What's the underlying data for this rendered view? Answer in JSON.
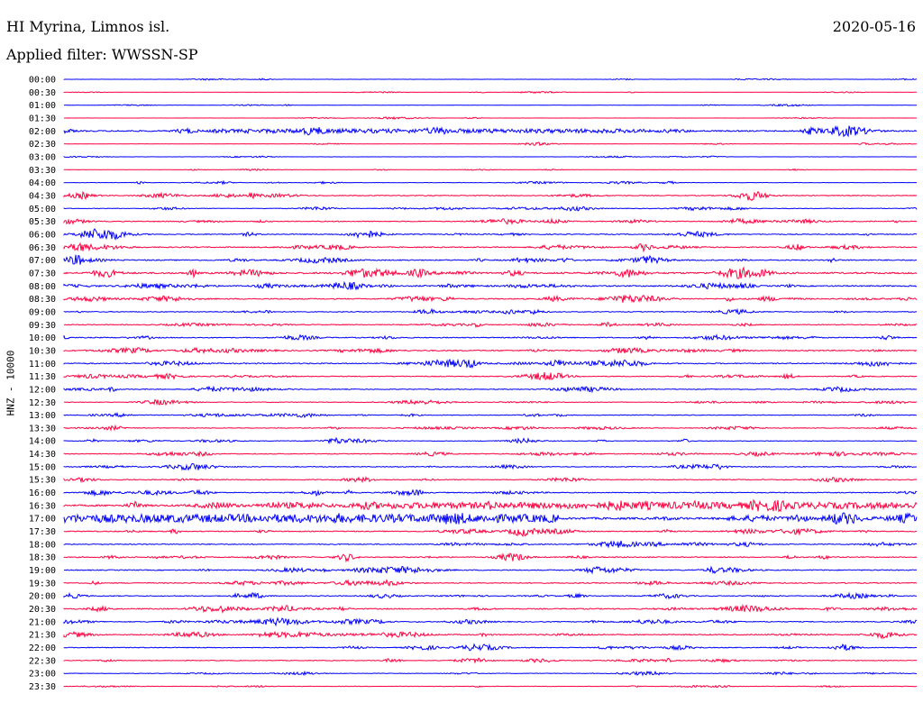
{
  "header": {
    "station": "HI Myrina, Limnos isl.",
    "date": "2020-05-16",
    "filter": "Applied filter: WWSSN-SP"
  },
  "channel_label": "HNZ - 10000",
  "colors": {
    "even_trace": "#0000ff",
    "odd_trace": "#ff0040",
    "background": "#ffffff"
  },
  "chart_data": {
    "type": "line",
    "title": "HI Myrina, Limnos isl.",
    "subtitle": "Applied filter: WWSSN-SP",
    "ylabel": "HNZ - 10000",
    "xlabel": "",
    "legend": "none",
    "grid": false,
    "trace_period_minutes": 30,
    "row_labels": [
      "00:00",
      "00:30",
      "01:00",
      "01:30",
      "02:00",
      "02:30",
      "03:00",
      "03:30",
      "04:00",
      "04:30",
      "05:00",
      "05:30",
      "06:00",
      "06:30",
      "07:00",
      "07:30",
      "08:00",
      "08:30",
      "09:00",
      "09:30",
      "10:00",
      "10:30",
      "11:00",
      "11:30",
      "12:00",
      "12:30",
      "13:00",
      "13:30",
      "14:00",
      "14:30",
      "15:00",
      "15:30",
      "16:00",
      "16:30",
      "17:00",
      "17:30",
      "18:00",
      "18:30",
      "19:00",
      "19:30",
      "20:00",
      "20:30",
      "21:00",
      "21:30",
      "22:00",
      "22:30",
      "23:00",
      "23:30"
    ],
    "relative_activity": [
      0.3,
      0.3,
      0.3,
      0.2,
      2.0,
      0.3,
      0.3,
      0.4,
      0.6,
      1.2,
      1.0,
      1.3,
      1.4,
      1.5,
      1.6,
      2.4,
      1.8,
      1.6,
      1.2,
      1.2,
      1.4,
      1.6,
      1.6,
      1.3,
      1.2,
      1.0,
      1.0,
      1.0,
      1.0,
      1.2,
      1.2,
      1.2,
      1.3,
      2.6,
      3.0,
      1.4,
      1.4,
      1.4,
      1.4,
      1.4,
      1.3,
      1.6,
      1.4,
      1.5,
      1.2,
      1.0,
      0.8,
      0.6
    ]
  }
}
